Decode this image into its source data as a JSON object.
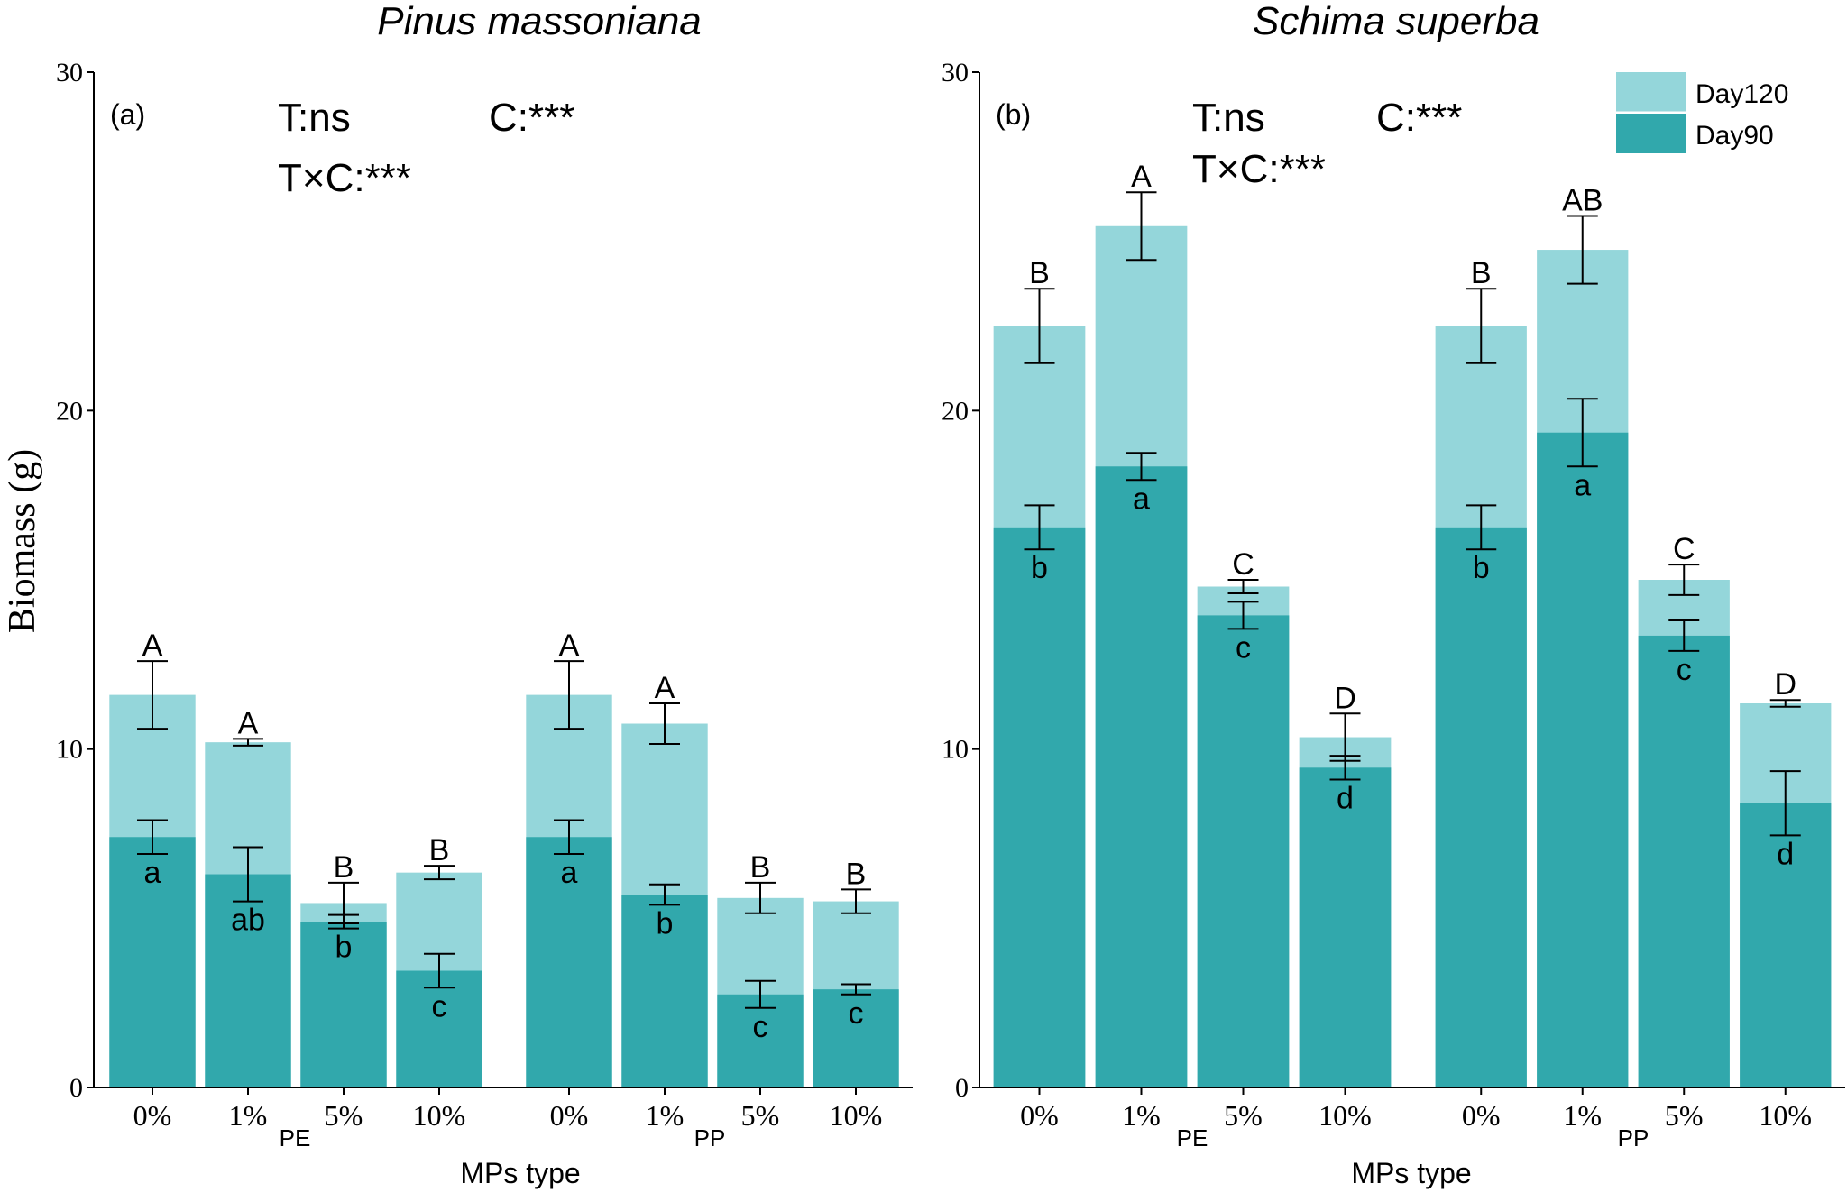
{
  "y_axis_label": "Biomass (g)",
  "colors": {
    "day120": "#94d6da",
    "day90": "#31a8ac"
  },
  "legend": [
    "Day120",
    "Day90"
  ],
  "chart_data": [
    {
      "type": "bar",
      "panel": "(a)",
      "title": "Pinus massoniana",
      "stats": {
        "t": "T:ns",
        "c": "C:***",
        "txc": "T×C:***"
      },
      "xlabel": "MPs type",
      "ylabel": "Biomass (g)",
      "ylim": [
        0,
        30
      ],
      "yticks": [
        0,
        10,
        20,
        30
      ],
      "groups": [
        {
          "name": "PE",
          "categories": [
            "0%",
            "1%",
            "5%",
            "10%"
          ],
          "day90": [
            7.4,
            6.3,
            4.9,
            3.45
          ],
          "day90_err": [
            0.5,
            0.8,
            0.2,
            0.5
          ],
          "day90_letters": [
            "a",
            "ab",
            "b",
            "c"
          ],
          "day120": [
            11.6,
            10.2,
            5.45,
            6.35
          ],
          "day120_err": [
            1.0,
            0.1,
            0.6,
            0.2
          ],
          "day120_letters": [
            "A",
            "A",
            "B",
            "B"
          ]
        },
        {
          "name": "PP",
          "categories": [
            "0%",
            "1%",
            "5%",
            "10%"
          ],
          "day90": [
            7.4,
            5.7,
            2.75,
            2.9
          ],
          "day90_err": [
            0.5,
            0.3,
            0.4,
            0.15
          ],
          "day90_letters": [
            "a",
            "b",
            "c",
            "c"
          ],
          "day120": [
            11.6,
            10.75,
            5.6,
            5.5
          ],
          "day120_err": [
            1.0,
            0.6,
            0.45,
            0.35
          ],
          "day120_letters": [
            "A",
            "A",
            "B",
            "B"
          ]
        }
      ]
    },
    {
      "type": "bar",
      "panel": "(b)",
      "title": "Schima superba",
      "stats": {
        "t": "T:ns",
        "c": "C:***",
        "txc": "T×C:***"
      },
      "xlabel": "MPs type",
      "ylabel": "Biomass (g)",
      "ylim": [
        0,
        30
      ],
      "yticks": [
        0,
        10,
        20,
        30
      ],
      "groups": [
        {
          "name": "PE",
          "categories": [
            "0%",
            "1%",
            "5%",
            "10%"
          ],
          "day90": [
            16.55,
            18.35,
            13.95,
            9.45
          ],
          "day90_err": [
            0.65,
            0.4,
            0.4,
            0.35
          ],
          "day90_letters": [
            "b",
            "a",
            "c",
            "d"
          ],
          "day120": [
            22.5,
            25.45,
            14.8,
            10.35
          ],
          "day120_err": [
            1.1,
            1.0,
            0.2,
            0.7
          ],
          "day120_letters": [
            "B",
            "A",
            "C",
            "D"
          ]
        },
        {
          "name": "PP",
          "categories": [
            "0%",
            "1%",
            "5%",
            "10%"
          ],
          "day90": [
            16.55,
            19.35,
            13.35,
            8.4
          ],
          "day90_err": [
            0.65,
            1.0,
            0.45,
            0.95
          ],
          "day90_letters": [
            "b",
            "a",
            "c",
            "d"
          ],
          "day120": [
            22.5,
            24.75,
            15.0,
            11.35
          ],
          "day120_err": [
            1.1,
            1.0,
            0.45,
            0.1
          ],
          "day120_letters": [
            "B",
            "AB",
            "C",
            "D"
          ]
        }
      ]
    }
  ]
}
